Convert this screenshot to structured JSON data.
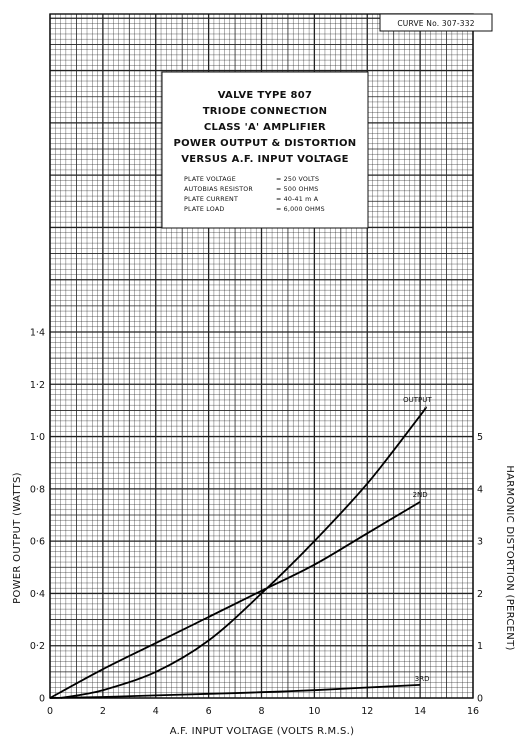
{
  "chart_data": {
    "type": "line",
    "curve_number": "CURVE No. 307-332",
    "title_lines": [
      "VALVE TYPE 807",
      "TRIODE CONNECTION",
      "CLASS 'A' AMPLIFIER",
      "POWER OUTPUT & DISTORTION",
      "VERSUS A.F. INPUT VOLTAGE"
    ],
    "conditions": [
      {
        "label": "PLATE VOLTAGE",
        "value": "= 250 VOLTS"
      },
      {
        "label": "AUTOBIAS RESISTOR",
        "value": "= 500 OHMS"
      },
      {
        "label": "PLATE CURRENT",
        "value": "= 40-41 m A"
      },
      {
        "label": "PLATE LOAD",
        "value": "= 6,000 OHMS"
      }
    ],
    "xlabel": "A.F. INPUT VOLTAGE (VOLTS R.M.S.)",
    "ylabel_left": "POWER OUTPUT (WATTS)",
    "ylabel_right": "HARMONIC DISTORTION (PERCENT)",
    "xlim": [
      0,
      16
    ],
    "ylim_left": [
      0,
      1.4
    ],
    "ylim_right": [
      0,
      7
    ],
    "x_ticks": [
      "0",
      "2",
      "4",
      "6",
      "8",
      "10",
      "12",
      "14",
      "16"
    ],
    "y_left_ticks": [
      "0",
      "0·2",
      "0·4",
      "0·6",
      "0·8",
      "1·0",
      "1·2",
      "1·4"
    ],
    "y_right_ticks": [
      "0",
      "1",
      "2",
      "3",
      "4",
      "5"
    ],
    "grid": true,
    "series": [
      {
        "name": "OUTPUT",
        "axis": "left",
        "x": [
          0.4,
          2,
          4,
          6,
          8,
          10,
          12,
          14,
          14.2
        ],
        "y": [
          0,
          0.03,
          0.1,
          0.22,
          0.4,
          0.6,
          0.82,
          1.08,
          1.11
        ]
      },
      {
        "name": "2ND",
        "axis": "right",
        "x": [
          0,
          2,
          4,
          6,
          8,
          10,
          12,
          14
        ],
        "y": [
          0,
          0.55,
          1.05,
          1.55,
          2.05,
          2.55,
          3.15,
          3.75
        ]
      },
      {
        "name": "3RD",
        "axis": "right",
        "x": [
          0,
          2,
          4,
          6,
          8,
          10,
          12,
          14
        ],
        "y": [
          0,
          0.02,
          0.05,
          0.08,
          0.11,
          0.15,
          0.2,
          0.25
        ]
      }
    ]
  }
}
